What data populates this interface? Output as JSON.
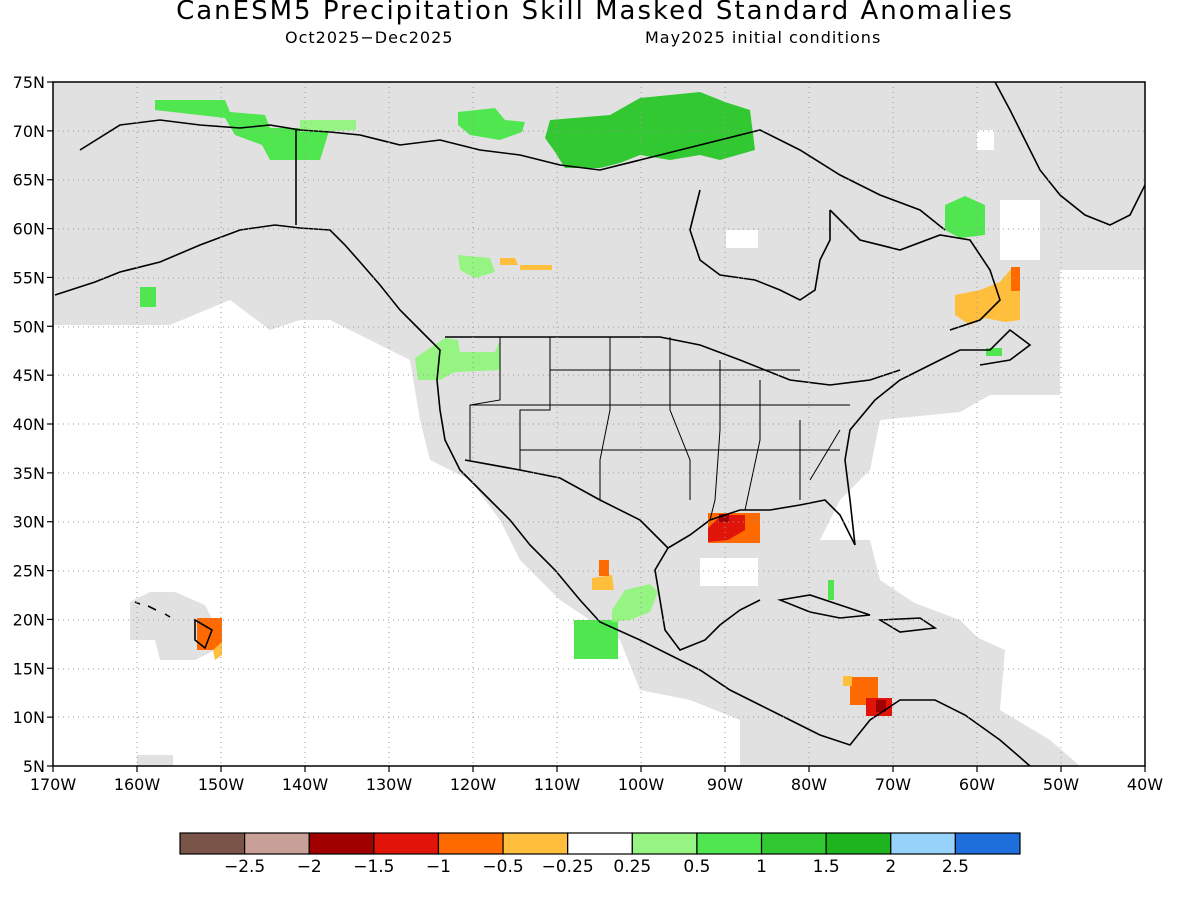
{
  "title": "CanESM5 Precipitation Skill Masked Standard Anomalies",
  "subtitle_left": "Oct2025−Dec2025",
  "subtitle_right": "May2025 initial conditions",
  "colors": {
    "skill_mask": "#e1e1e1",
    "land_outline": "#000000",
    "grid": "#9a9a9a"
  },
  "map": {
    "lon_range": [
      -170,
      -40
    ],
    "lat_range": [
      5,
      75
    ],
    "grid": "dotted",
    "lon_ticks": [
      "170W",
      "160W",
      "150W",
      "140W",
      "130W",
      "120W",
      "110W",
      "100W",
      "90W",
      "80W",
      "70W",
      "60W",
      "50W",
      "40W"
    ],
    "lat_ticks": [
      "5N",
      "10N",
      "15N",
      "20N",
      "25N",
      "30N",
      "35N",
      "40N",
      "45N",
      "50N",
      "55N",
      "60N",
      "65N",
      "70N",
      "75N"
    ]
  },
  "colorbar": {
    "bins": [
      {
        "color": "#7a5448"
      },
      {
        "color": "#c8a097"
      },
      {
        "color": "#a00000"
      },
      {
        "color": "#e1140a"
      },
      {
        "color": "#ff6a00"
      },
      {
        "color": "#ffbe3c"
      },
      {
        "color": "#ffffff"
      },
      {
        "color": "#96f582"
      },
      {
        "color": "#50e650"
      },
      {
        "color": "#32c832"
      },
      {
        "color": "#1eb41e"
      },
      {
        "color": "#96d2fa"
      },
      {
        "color": "#1e6edc"
      }
    ],
    "labels": [
      "−2.5",
      "−2",
      "−1.5",
      "−1",
      "−0.5",
      "−0.25",
      "0.25",
      "0.5",
      "1",
      "1.5",
      "2",
      "2.5"
    ]
  },
  "anomaly_regions": [
    {
      "area": "northern Alaska coast",
      "lon": -153,
      "lat": 72,
      "category": "0.5"
    },
    {
      "area": "Arctic Canada",
      "lon": -98,
      "lat": 70,
      "category": "1"
    },
    {
      "area": "western Arctic Canada",
      "lon": -120,
      "lat": 71,
      "category": "0.5"
    },
    {
      "area": "Labrador",
      "lon": -61,
      "lat": 61,
      "category": "1"
    },
    {
      "area": "Newfoundland",
      "lon": -58,
      "lat": 51,
      "category": "-0.5"
    },
    {
      "area": "Pacific Northwest",
      "lon": -122,
      "lat": 47,
      "category": "0.5"
    },
    {
      "area": "Hudson Bay west",
      "lon": -119,
      "lat": 57,
      "category": "0.5"
    },
    {
      "area": "Aleutians",
      "lon": -159,
      "lat": 53,
      "category": "1"
    },
    {
      "area": "Gulf coast Louisiana",
      "lon": -89,
      "lat": 29.5,
      "category": "-1"
    },
    {
      "area": "southern Mexico Pacific",
      "lon": -104,
      "lat": 17,
      "category": "1"
    },
    {
      "area": "western Gulf of Mexico",
      "lon": -98,
      "lat": 21,
      "category": "0.5"
    },
    {
      "area": "northwest Mexico",
      "lon": -104,
      "lat": 24.5,
      "category": "-0.5"
    },
    {
      "area": "Hawaii east",
      "lon": -151,
      "lat": 18.5,
      "category": "-1"
    },
    {
      "area": "Caribbean Colombia",
      "lon": -73,
      "lat": 11,
      "category": "-1"
    },
    {
      "area": "Bahamas",
      "lon": -77,
      "lat": 23,
      "category": "1"
    }
  ]
}
